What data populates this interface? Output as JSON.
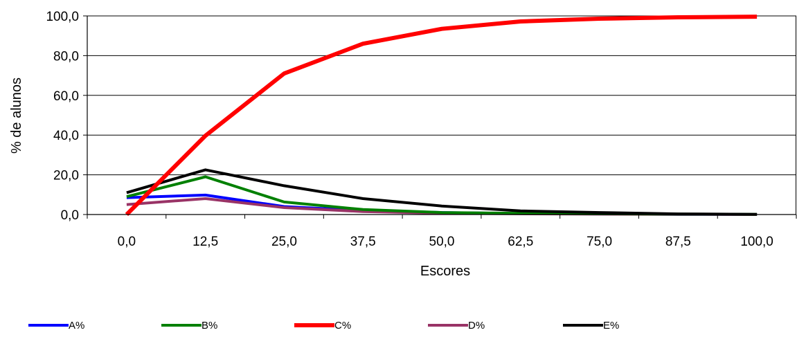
{
  "chart_data": {
    "type": "line",
    "xlabel": "Escores",
    "ylabel": "% de alunos",
    "categories": [
      "0,0",
      "12,5",
      "25,0",
      "37,5",
      "50,0",
      "62,5",
      "75,0",
      "87,5",
      "100,0"
    ],
    "y_ticks": [
      "0,0",
      "20,0",
      "40,0",
      "60,0",
      "80,0",
      "100,0"
    ],
    "ylim": [
      0,
      100
    ],
    "grid": "horizontal",
    "legend_position": "bottom",
    "series": [
      {
        "name": "A%",
        "color": "#0000ff",
        "values": [
          8.5,
          9.8,
          4.0,
          2.0,
          1.0,
          0.5,
          0.3,
          0.1,
          0.0
        ]
      },
      {
        "name": "B%",
        "color": "#008000",
        "values": [
          9.0,
          19.0,
          6.3,
          2.5,
          1.0,
          0.6,
          0.4,
          0.2,
          0.1
        ]
      },
      {
        "name": "C%",
        "color": "#ff0000",
        "values": [
          0.0,
          39.7,
          71.0,
          86.0,
          93.5,
          97.2,
          98.6,
          99.3,
          99.6
        ]
      },
      {
        "name": "D%",
        "color": "#993366",
        "values": [
          5.0,
          8.0,
          3.5,
          1.5,
          0.7,
          0.4,
          0.2,
          0.1,
          0.0
        ]
      },
      {
        "name": "E%",
        "color": "#000000",
        "values": [
          11.0,
          22.5,
          14.5,
          8.0,
          4.3,
          1.8,
          1.0,
          0.3,
          0.1
        ]
      }
    ]
  }
}
